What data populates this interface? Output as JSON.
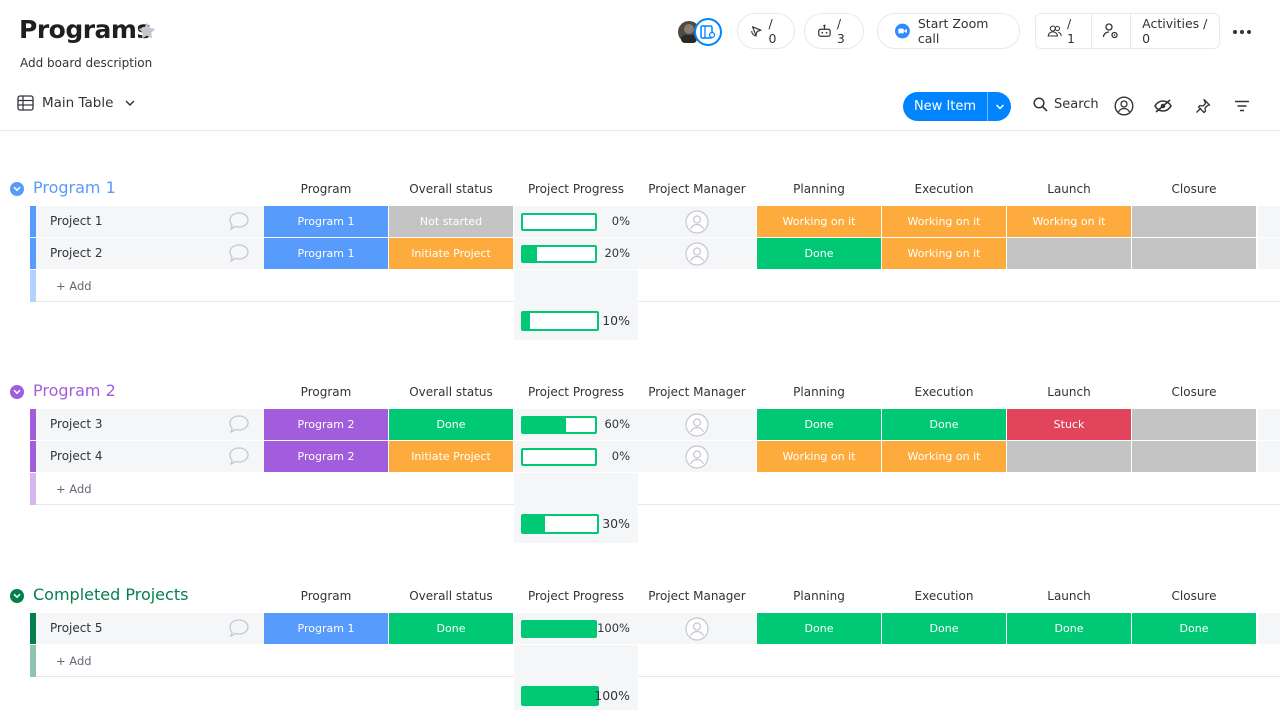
{
  "board": {
    "title": "Programs",
    "description": "Add board description"
  },
  "header": {
    "updates_count": "/ 0",
    "automations_count": "/ 3",
    "zoom_label": "Start Zoom call",
    "members_count": "/ 1",
    "activities_label": "Activities / 0"
  },
  "toolbar": {
    "view_label": "Main Table",
    "new_item_label": "New Item",
    "search_label": "Search"
  },
  "columns": [
    "Program",
    "Overall status",
    "Project Progress",
    "Project Manager",
    "Planning",
    "Execution",
    "Launch",
    "Closure"
  ],
  "add_label": "+ Add",
  "colors": {
    "done": "#00c875",
    "working": "#fdab3d",
    "stuck": "#e2445c",
    "empty": "#c4c4c4",
    "program1": "#579bfc",
    "program2": "#a25ddc",
    "completed": "#037f4c",
    "accent": "#0085ff"
  },
  "groups": [
    {
      "title": "Program 1",
      "color": "#579bfc",
      "rows": [
        {
          "name": "Project 1",
          "program": "Program 1",
          "status": "Not started",
          "progress": 0,
          "progress_label": "0%",
          "planning": "Working on it",
          "execution": "Working on it",
          "launch": "Working on it",
          "closure": ""
        },
        {
          "name": "Project 2",
          "program": "Program 1",
          "status": "Initiate Project",
          "progress": 20,
          "progress_label": "20%",
          "planning": "Done",
          "execution": "Working on it",
          "launch": "",
          "closure": ""
        }
      ],
      "summary": {
        "progress": 10,
        "label": "10%"
      }
    },
    {
      "title": "Program 2",
      "color": "#a25ddc",
      "rows": [
        {
          "name": "Project 3",
          "program": "Program 2",
          "status": "Done",
          "progress": 60,
          "progress_label": "60%",
          "planning": "Done",
          "execution": "Done",
          "launch": "Stuck",
          "closure": ""
        },
        {
          "name": "Project 4",
          "program": "Program 2",
          "status": "Initiate Project",
          "progress": 0,
          "progress_label": "0%",
          "planning": "Working on it",
          "execution": "Working on it",
          "launch": "",
          "closure": ""
        }
      ],
      "summary": {
        "progress": 30,
        "label": "30%"
      }
    },
    {
      "title": "Completed Projects",
      "color": "#037f4c",
      "rows": [
        {
          "name": "Project 5",
          "program": "Program 1",
          "status": "Done",
          "progress": 100,
          "progress_label": "100%",
          "planning": "Done",
          "execution": "Done",
          "launch": "Done",
          "closure": "Done"
        }
      ],
      "summary": {
        "progress": 100,
        "label": "100%"
      }
    }
  ]
}
